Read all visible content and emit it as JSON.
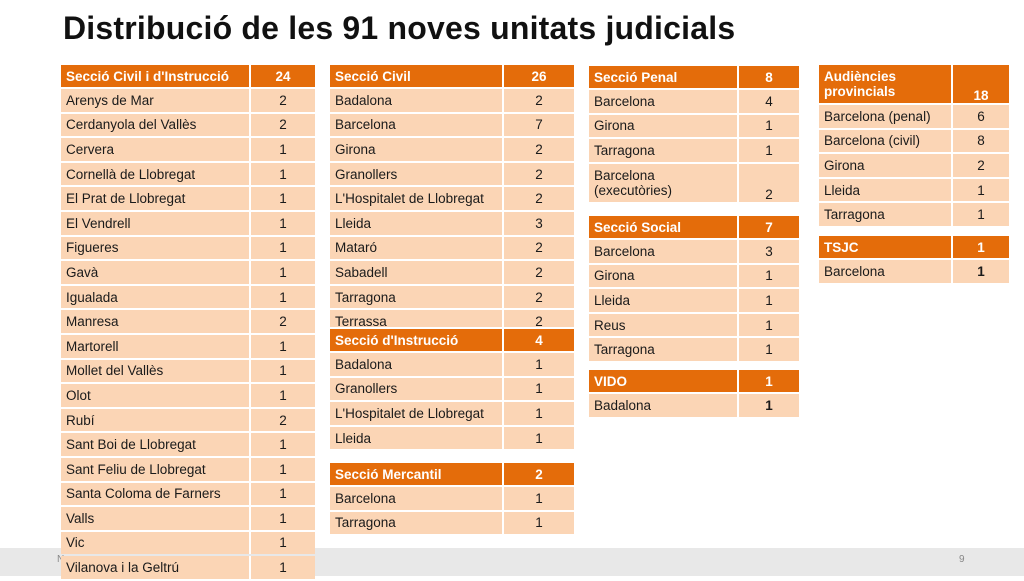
{
  "title": "Distribució de les 91 noves unitats judicials",
  "footer": {
    "page": "9",
    "left": "N"
  },
  "tables": {
    "civil_instr": {
      "header": "Secció Civil i d'Instrucció",
      "total": "24",
      "rows": [
        {
          "name": "Arenys de Mar",
          "value": "2"
        },
        {
          "name": "Cerdanyola del Vallès",
          "value": "2"
        },
        {
          "name": "Cervera",
          "value": "1"
        },
        {
          "name": "Cornellà de Llobregat",
          "value": "1"
        },
        {
          "name": "El Prat de Llobregat",
          "value": "1"
        },
        {
          "name": "El Vendrell",
          "value": "1"
        },
        {
          "name": "Figueres",
          "value": "1"
        },
        {
          "name": "Gavà",
          "value": "1"
        },
        {
          "name": "Igualada",
          "value": "1"
        },
        {
          "name": "Manresa",
          "value": "2"
        },
        {
          "name": "Martorell",
          "value": "1"
        },
        {
          "name": "Mollet del Vallès",
          "value": "1"
        },
        {
          "name": "Olot",
          "value": "1"
        },
        {
          "name": "Rubí",
          "value": "2"
        },
        {
          "name": "Sant Boi de Llobregat",
          "value": "1"
        },
        {
          "name": "Sant Feliu de Llobregat",
          "value": "1"
        },
        {
          "name": "Santa Coloma de Farners",
          "value": "1"
        },
        {
          "name": "Valls",
          "value": "1"
        },
        {
          "name": "Vic",
          "value": "1"
        },
        {
          "name": "Vilanova i la Geltrú",
          "value": "1"
        }
      ]
    },
    "civil": {
      "header": "Secció Civil",
      "total": "26",
      "rows": [
        {
          "name": "Badalona",
          "value": "2"
        },
        {
          "name": "Barcelona",
          "value": "7"
        },
        {
          "name": "Girona",
          "value": "2"
        },
        {
          "name": "Granollers",
          "value": "2"
        },
        {
          "name": "L'Hospitalet de Llobregat",
          "value": "2"
        },
        {
          "name": "Lleida",
          "value": "3"
        },
        {
          "name": "Mataró",
          "value": "2"
        },
        {
          "name": "Sabadell",
          "value": "2"
        },
        {
          "name": "Tarragona",
          "value": "2"
        },
        {
          "name": "Terrassa",
          "value": "2"
        }
      ]
    },
    "instr": {
      "header": "Secció d'Instrucció",
      "total": "4",
      "rows": [
        {
          "name": "Badalona",
          "value": "1"
        },
        {
          "name": "Granollers",
          "value": "1"
        },
        {
          "name": "L'Hospitalet de Llobregat",
          "value": "1"
        },
        {
          "name": "Lleida",
          "value": "1"
        }
      ]
    },
    "mercantil": {
      "header": "Secció Mercantil",
      "total": "2",
      "rows": [
        {
          "name": "Barcelona",
          "value": "1"
        },
        {
          "name": "Tarragona",
          "value": "1"
        }
      ]
    },
    "penal": {
      "header": "Secció Penal",
      "total": "8",
      "rows": [
        {
          "name": "Barcelona",
          "value": "4"
        },
        {
          "name": "Girona",
          "value": "1"
        },
        {
          "name": "Tarragona",
          "value": "1"
        },
        {
          "name": "Barcelona (executòries)",
          "value": "2"
        }
      ]
    },
    "social": {
      "header": "Secció Social",
      "total": "7",
      "rows": [
        {
          "name": "Barcelona",
          "value": "3"
        },
        {
          "name": "Girona",
          "value": "1"
        },
        {
          "name": "Lleida",
          "value": "1"
        },
        {
          "name": "Reus",
          "value": "1"
        },
        {
          "name": "Tarragona",
          "value": "1"
        }
      ]
    },
    "vido": {
      "header": "VIDO",
      "total": "1",
      "rows": [
        {
          "name": "Badalona",
          "value": "1"
        }
      ]
    },
    "audiencies": {
      "header": "Audiències provincials",
      "total": "18",
      "rows": [
        {
          "name": "Barcelona (penal)",
          "value": "6"
        },
        {
          "name": "Barcelona (civil)",
          "value": "8"
        },
        {
          "name": "Girona",
          "value": "2"
        },
        {
          "name": "Lleida",
          "value": "1"
        },
        {
          "name": "Tarragona",
          "value": "1"
        }
      ]
    },
    "tsjc": {
      "header": "TSJC",
      "total": "1",
      "rows": [
        {
          "name": "Barcelona",
          "value": "1"
        }
      ]
    }
  }
}
